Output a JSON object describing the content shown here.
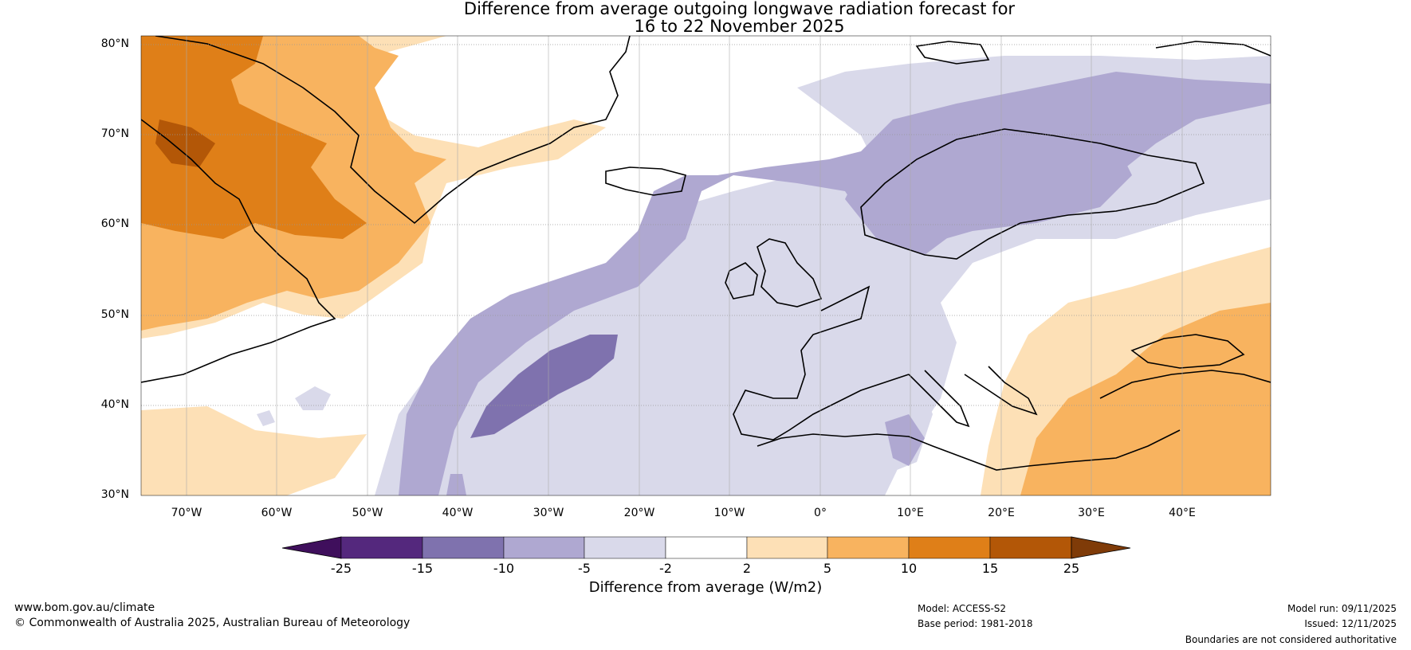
{
  "title": {
    "line1": "Difference from average outgoing longwave radiation forecast for",
    "line2": "16 to 22 November 2025"
  },
  "lat_labels": [
    "80°N",
    "70°N",
    "60°N",
    "50°N",
    "40°N",
    "30°N"
  ],
  "lon_labels": [
    "70°W",
    "60°W",
    "50°W",
    "40°W",
    "30°W",
    "20°W",
    "10°W",
    "0°",
    "10°E",
    "20°E",
    "30°E",
    "40°E"
  ],
  "colorbar": {
    "ticks": [
      "-25",
      "-15",
      "-10",
      "-5",
      "-2",
      "2",
      "5",
      "10",
      "15",
      "25"
    ],
    "colors": [
      "#3f0f5c",
      "#54287d",
      "#7f72ae",
      "#afa8d1",
      "#d9d9ea",
      "#ffffff",
      "#fde0b6",
      "#f8b35f",
      "#df7f18",
      "#b35707",
      "#7f3b08"
    ],
    "label": "Difference from average (W/m2)"
  },
  "map_colors": {
    "neg2": "#d9d9ea",
    "neg3": "#afa8d1",
    "neg4": "#7f72ae",
    "pos1": "#fde0b6",
    "pos2": "#f8b35f",
    "pos3": "#df7f18",
    "pos4": "#b35707"
  },
  "footer": {
    "website": "www.bom.gov.au/climate",
    "copyright": "© Commonwealth of Australia 2025, Australian Bureau of Meteorology",
    "model": "Model: ACCESS-S2",
    "base_period": "Base period: 1981-2018",
    "model_run": "Model run: 09/11/2025",
    "issued": "Issued: 12/11/2025",
    "disclaimer": "Boundaries are not considered authoritative"
  }
}
